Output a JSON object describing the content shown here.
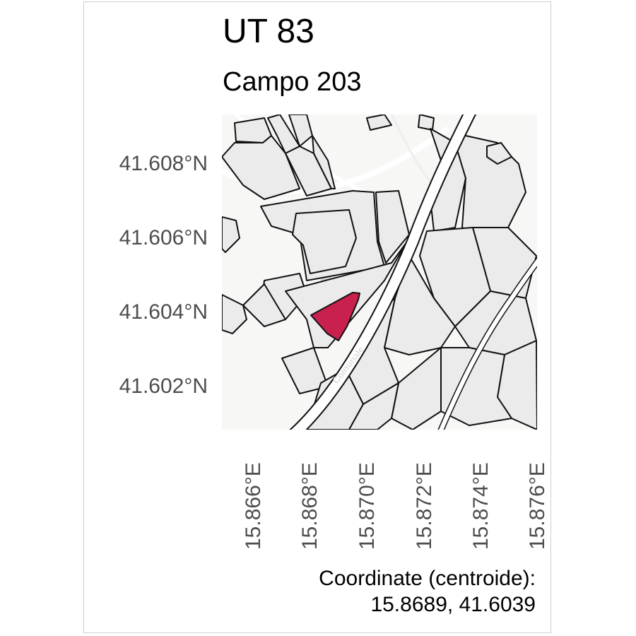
{
  "header": {
    "title": "UT 83",
    "subtitle": "Campo 203"
  },
  "map": {
    "y_ticks": [
      "41.608°N",
      "41.606°N",
      "41.604°N",
      "41.602°N"
    ],
    "x_ticks": [
      "15.866°E",
      "15.868°E",
      "15.870°E",
      "15.872°E",
      "15.874°E",
      "15.876°E"
    ],
    "road_label": "Comunale",
    "colors": {
      "background": "#f7f7f5",
      "parcel_fill": "#ebebeb",
      "parcel_stroke": "#111111",
      "highlight_fill": "#c8214e",
      "road": "#ffffff",
      "building": "#d6dadd"
    }
  },
  "footer": {
    "coords_label": "Coordinate (centroide):",
    "coords_value": "15.8689, 41.6039"
  }
}
